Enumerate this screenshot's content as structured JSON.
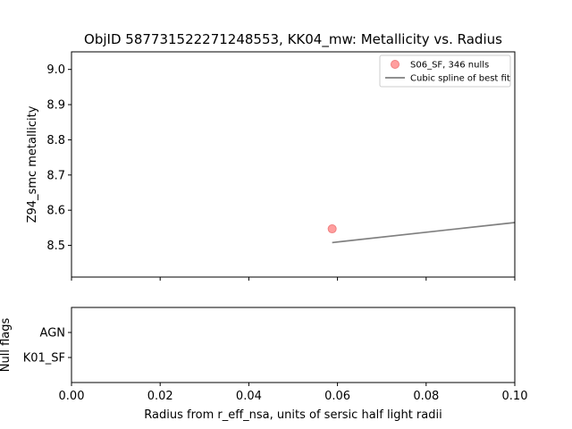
{
  "chart_data": [
    {
      "type": "scatter",
      "title": "ObjID 587731522271248553, KK04_mw: Metallicity vs. Radius",
      "xlabel": "",
      "ylabel": "Z94_smc metallicity",
      "xlim": [
        0.0,
        0.1
      ],
      "ylim": [
        8.41,
        9.05
      ],
      "yticks": [
        "8.5",
        "8.6",
        "8.7",
        "8.8",
        "8.9",
        "9.0"
      ],
      "ytick_values": [
        8.5,
        8.6,
        8.7,
        8.8,
        8.9,
        9.0
      ],
      "xtick_values": [
        0.0,
        0.02,
        0.04,
        0.06,
        0.08,
        0.1
      ],
      "xtick_labels_shown": false,
      "grid": false,
      "legend_position": "top-right",
      "series": [
        {
          "name": "S06_SF, 346 nulls",
          "type": "scatter",
          "color": "#ff9e9e",
          "x": [
            0.0588
          ],
          "y": [
            8.547
          ]
        },
        {
          "name": "Cubic spline of best fit",
          "type": "line",
          "color": "#808080",
          "x": [
            0.0588,
            0.1
          ],
          "y": [
            8.508,
            8.565
          ]
        }
      ]
    },
    {
      "type": "scatter",
      "title": "",
      "xlabel": "Radius from r_eff_nsa, units of sersic half light radii",
      "ylabel": "Null flags",
      "xlim": [
        0.0,
        0.1
      ],
      "xticks": [
        "0.00",
        "0.02",
        "0.04",
        "0.06",
        "0.08",
        "0.10"
      ],
      "xtick_values": [
        0.0,
        0.02,
        0.04,
        0.06,
        0.08,
        0.1
      ],
      "categories": [
        "AGN",
        "K01_SF"
      ],
      "grid": false,
      "series": []
    }
  ]
}
